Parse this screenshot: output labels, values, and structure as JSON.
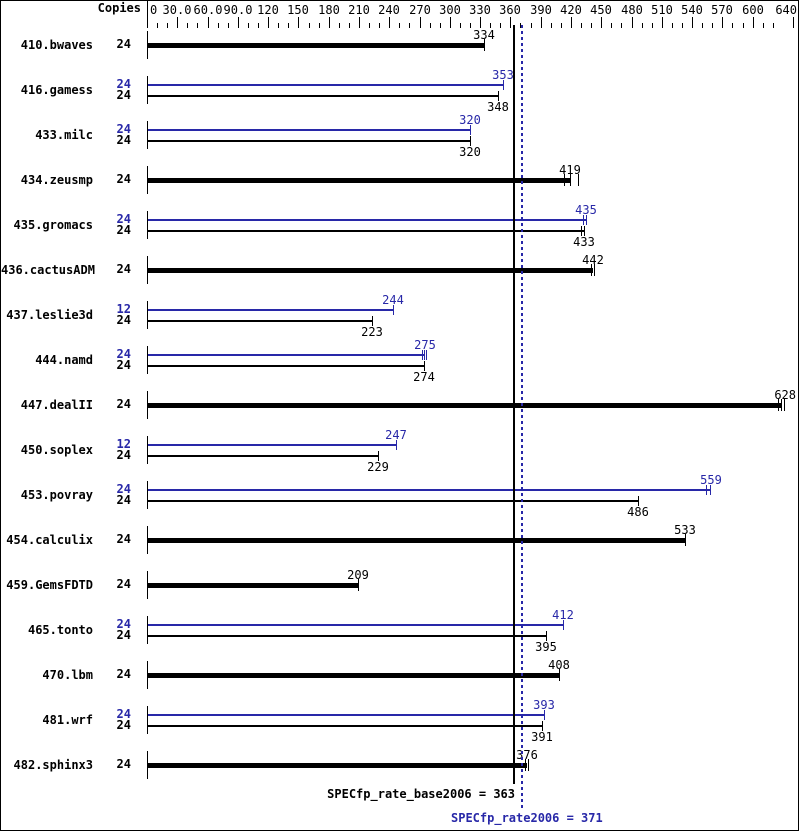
{
  "chart_data": {
    "type": "bar",
    "orientation": "horizontal",
    "header": {
      "copies_label": "Copies"
    },
    "colors": {
      "base": "#000000",
      "peak": "#2828a8",
      "background": "#ffffff"
    },
    "axis": {
      "min": 0,
      "max": 640,
      "minor_step": 10,
      "major_ticks": [
        {
          "v": 0,
          "label": "0"
        },
        {
          "v": 30,
          "label": "30.0"
        },
        {
          "v": 60,
          "label": "60.0"
        },
        {
          "v": 90,
          "label": "90.0"
        },
        {
          "v": 120,
          "label": "120"
        },
        {
          "v": 150,
          "label": "150"
        },
        {
          "v": 180,
          "label": "180"
        },
        {
          "v": 210,
          "label": "210"
        },
        {
          "v": 240,
          "label": "240"
        },
        {
          "v": 270,
          "label": "270"
        },
        {
          "v": 300,
          "label": "300"
        },
        {
          "v": 330,
          "label": "330"
        },
        {
          "v": 360,
          "label": "360"
        },
        {
          "v": 390,
          "label": "390"
        },
        {
          "v": 420,
          "label": "420"
        },
        {
          "v": 450,
          "label": "450"
        },
        {
          "v": 480,
          "label": "480"
        },
        {
          "v": 510,
          "label": "510"
        },
        {
          "v": 540,
          "label": "540"
        },
        {
          "v": 570,
          "label": "570"
        },
        {
          "v": 600,
          "label": "600"
        },
        {
          "v": 640,
          "label": "640"
        }
      ]
    },
    "benchmarks": [
      {
        "name": "410.bwaves",
        "rows": [
          {
            "run": "base",
            "thick": true,
            "copies": "24",
            "value": 334,
            "ticks": [
              0
            ]
          }
        ]
      },
      {
        "name": "416.gamess",
        "rows": [
          {
            "run": "peak",
            "thick": false,
            "copies": "24",
            "value": 353,
            "ticks": [
              0
            ]
          },
          {
            "run": "base",
            "thick": false,
            "copies": "24",
            "value": 348,
            "ticks": [
              0
            ]
          }
        ]
      },
      {
        "name": "433.milc",
        "rows": [
          {
            "run": "peak",
            "thick": false,
            "copies": "24",
            "value": 320,
            "ticks": [
              0
            ]
          },
          {
            "run": "base",
            "thick": false,
            "copies": "24",
            "value": 320,
            "ticks": [
              0
            ]
          }
        ]
      },
      {
        "name": "434.zeusmp",
        "rows": [
          {
            "run": "base",
            "thick": true,
            "copies": "24",
            "value": 419,
            "ticks": [
              -6,
              0,
              8
            ]
          }
        ]
      },
      {
        "name": "435.gromacs",
        "rows": [
          {
            "run": "peak",
            "thick": false,
            "copies": "24",
            "value": 435,
            "ticks": [
              -3,
              0
            ]
          },
          {
            "run": "base",
            "thick": false,
            "copies": "24",
            "value": 433,
            "ticks": [
              -3,
              0
            ]
          }
        ]
      },
      {
        "name": "436.cactusADM",
        "rows": [
          {
            "run": "base",
            "thick": true,
            "copies": "24",
            "value": 442,
            "ticks": [
              -2,
              1
            ]
          }
        ]
      },
      {
        "name": "437.leslie3d",
        "rows": [
          {
            "run": "peak",
            "thick": false,
            "copies": "12",
            "value": 244,
            "ticks": [
              0
            ]
          },
          {
            "run": "base",
            "thick": false,
            "copies": "24",
            "value": 223,
            "ticks": [
              0
            ]
          }
        ]
      },
      {
        "name": "444.namd",
        "rows": [
          {
            "run": "peak",
            "thick": false,
            "copies": "24",
            "value": 275,
            "ticks": [
              -3,
              -1,
              1
            ]
          },
          {
            "run": "base",
            "thick": false,
            "copies": "24",
            "value": 274,
            "ticks": [
              0
            ]
          }
        ]
      },
      {
        "name": "447.dealII",
        "rows": [
          {
            "run": "base",
            "thick": true,
            "copies": "24",
            "value": 628,
            "ticks": [
              -3,
              0,
              3
            ]
          }
        ]
      },
      {
        "name": "450.soplex",
        "rows": [
          {
            "run": "peak",
            "thick": false,
            "copies": "12",
            "value": 247,
            "ticks": [
              0
            ]
          },
          {
            "run": "base",
            "thick": false,
            "copies": "24",
            "value": 229,
            "ticks": [
              0
            ]
          }
        ]
      },
      {
        "name": "453.povray",
        "rows": [
          {
            "run": "peak",
            "thick": false,
            "copies": "24",
            "value": 559,
            "ticks": [
              -5,
              -1
            ]
          },
          {
            "run": "base",
            "thick": false,
            "copies": "24",
            "value": 486,
            "ticks": [
              0
            ]
          }
        ]
      },
      {
        "name": "454.calculix",
        "rows": [
          {
            "run": "base",
            "thick": true,
            "copies": "24",
            "value": 533,
            "ticks": [
              0
            ]
          }
        ]
      },
      {
        "name": "459.GemsFDTD",
        "rows": [
          {
            "run": "base",
            "thick": true,
            "copies": "24",
            "value": 209,
            "ticks": [
              0
            ]
          }
        ]
      },
      {
        "name": "465.tonto",
        "rows": [
          {
            "run": "peak",
            "thick": false,
            "copies": "24",
            "value": 412,
            "ticks": [
              0
            ]
          },
          {
            "run": "base",
            "thick": false,
            "copies": "24",
            "value": 395,
            "ticks": [
              0
            ]
          }
        ]
      },
      {
        "name": "470.lbm",
        "rows": [
          {
            "run": "base",
            "thick": true,
            "copies": "24",
            "value": 408,
            "ticks": [
              0
            ]
          }
        ]
      },
      {
        "name": "481.wrf",
        "rows": [
          {
            "run": "peak",
            "thick": false,
            "copies": "24",
            "value": 393,
            "ticks": [
              0
            ]
          },
          {
            "run": "base",
            "thick": false,
            "copies": "24",
            "value": 391,
            "ticks": [
              0
            ]
          }
        ]
      },
      {
        "name": "482.sphinx3",
        "rows": [
          {
            "run": "base",
            "thick": true,
            "copies": "24",
            "value": 376,
            "ticks": [
              -2,
              1
            ]
          }
        ]
      }
    ],
    "summary": {
      "base": {
        "text": "SPECfp_rate_base2006 = 363",
        "value": 363
      },
      "peak": {
        "text": "SPECfp_rate2006 = 371",
        "value": 371
      }
    }
  }
}
